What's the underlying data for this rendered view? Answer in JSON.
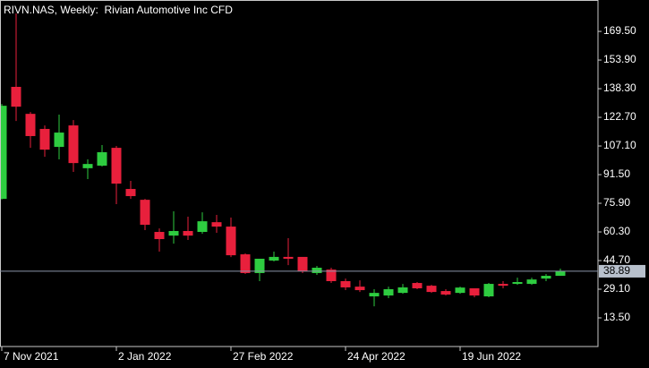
{
  "chart_data": {
    "type": "candlestick",
    "title": "RIVN.NAS, Weekly:  Rivian Automotive Inc CFD",
    "categories": [
      "7 Nov 2021",
      null,
      null,
      null,
      null,
      null,
      null,
      null,
      "2 Jan 2022",
      null,
      null,
      null,
      null,
      null,
      null,
      null,
      "27 Feb 2022",
      null,
      null,
      null,
      null,
      null,
      null,
      null,
      "24 Apr 2022",
      null,
      null,
      null,
      null,
      null,
      null,
      null,
      "19 Jun 2022",
      null,
      null,
      null,
      null,
      null,
      null,
      null
    ],
    "open": [
      78.3,
      139.3,
      124.6,
      116.4,
      106.6,
      118.3,
      95.0,
      96.4,
      106.1,
      83.7,
      77.8,
      60.3,
      58.3,
      60.8,
      60.3,
      65.6,
      63.2,
      48.1,
      37.9,
      44.7,
      46.7,
      46.7,
      37.9,
      39.8,
      33.5,
      30.5,
      25.2,
      25.7,
      27.1,
      32.5,
      31.0,
      28.1,
      27.1,
      29.6,
      25.2,
      32.0,
      32.0,
      32.0,
      34.9,
      36.4
    ],
    "high": [
      130.0,
      179.3,
      125.6,
      118.3,
      124.2,
      121.2,
      99.8,
      107.6,
      107.1,
      88.1,
      78.3,
      62.2,
      71.5,
      68.6,
      71.0,
      69.6,
      68.1,
      48.6,
      45.7,
      49.6,
      56.9,
      46.6,
      41.8,
      40.8,
      34.9,
      33.9,
      29.1,
      30.5,
      32.0,
      33.0,
      31.5,
      29.1,
      30.5,
      29.6,
      32.5,
      33.5,
      35.4,
      35.4,
      37.4,
      40.3
    ],
    "low": [
      78.0,
      120.7,
      106.1,
      101.2,
      99.8,
      93.0,
      89.1,
      95.9,
      75.4,
      78.3,
      61.3,
      49.6,
      53.9,
      55.9,
      59.3,
      59.8,
      46.6,
      37.4,
      33.5,
      44.2,
      42.2,
      37.9,
      36.9,
      32.5,
      28.6,
      27.6,
      19.8,
      24.2,
      26.6,
      29.1,
      27.1,
      25.7,
      26.6,
      24.7,
      24.7,
      29.6,
      31.5,
      31.5,
      33.5,
      36.4
    ],
    "close": [
      129.0,
      128.5,
      112.5,
      105.1,
      114.4,
      97.8,
      97.3,
      103.7,
      86.6,
      79.8,
      64.2,
      56.4,
      60.8,
      58.3,
      66.1,
      63.2,
      47.6,
      37.9,
      45.7,
      46.7,
      45.7,
      38.8,
      40.8,
      33.5,
      30.1,
      28.6,
      27.1,
      29.1,
      30.1,
      29.6,
      27.6,
      26.2,
      30.0,
      25.7,
      32.0,
      31.0,
      33.0,
      34.4,
      36.4,
      38.89
    ],
    "up_color": "#2ecc40",
    "down_color": "#e8203c",
    "last_price": 38.89,
    "ylim": [
      -2.1,
      186.6
    ],
    "yticks": [
      {
        "value": 13.5,
        "label": "13.50"
      },
      {
        "value": 29.1,
        "label": "29.10"
      },
      {
        "value": 44.7,
        "label": "44.70"
      },
      {
        "value": 60.3,
        "label": "60.30"
      },
      {
        "value": 75.9,
        "label": "75.90"
      },
      {
        "value": 91.5,
        "label": "91.50"
      },
      {
        "value": 107.1,
        "label": "107.10"
      },
      {
        "value": 122.7,
        "label": "122.70"
      },
      {
        "value": 138.3,
        "label": "138.30"
      },
      {
        "value": 153.9,
        "label": "153.90"
      },
      {
        "value": 169.5,
        "label": "169.50"
      }
    ]
  }
}
